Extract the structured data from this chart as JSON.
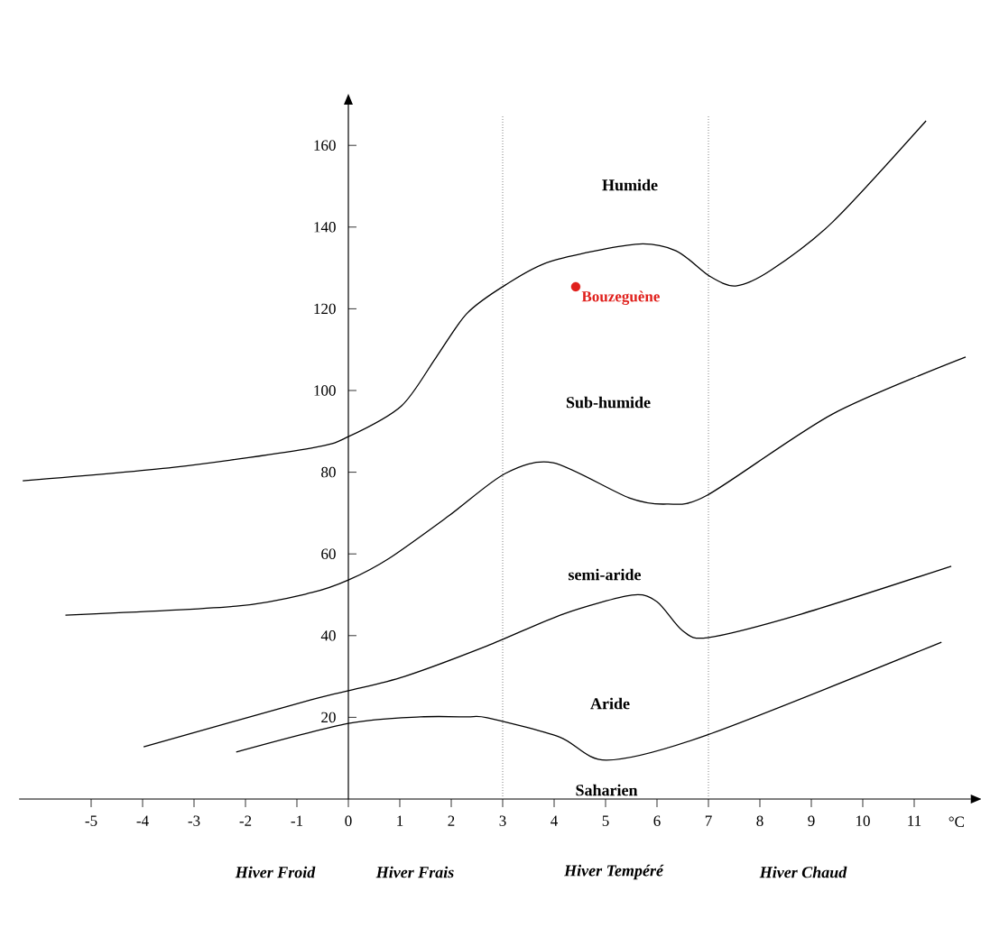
{
  "chart_data": {
    "type": "line",
    "xlabel": "°C",
    "xlim": [
      -6.4,
      12.1
    ],
    "ylim": [
      0,
      170
    ],
    "xticks": [
      -5,
      -4,
      -3,
      -2,
      -1,
      0,
      1,
      2,
      3,
      4,
      5,
      6,
      7,
      8,
      9,
      10,
      11
    ],
    "yticks": [
      20,
      40,
      60,
      80,
      100,
      120,
      140,
      160
    ],
    "line_style": "solid",
    "series": [
      {
        "color": "#000000",
        "x": [
          -6.33,
          -3.39,
          -0.72,
          0,
          1.03,
          1.7,
          2.3,
          3.05,
          3.93,
          5.58,
          6.37,
          7.02,
          7.53,
          8.21,
          9.42,
          11.23
        ],
        "values": [
          77.9,
          81.2,
          85.9,
          88.7,
          96.2,
          108,
          118.8,
          125.8,
          131.6,
          135.8,
          134.2,
          128,
          125.6,
          129.4,
          141.3,
          166
        ]
      },
      {
        "color": "#000000",
        "x": [
          -5.5,
          -2.18,
          -0.72,
          0,
          0.79,
          1.95,
          3.05,
          3.98,
          5.46,
          6.19,
          6.98,
          9.42,
          12.0
        ],
        "values": [
          45,
          47.2,
          50.5,
          53.6,
          58.9,
          69.3,
          79.7,
          82.3,
          73.7,
          72.2,
          74.4,
          94.3,
          108.2
        ]
      },
      {
        "color": "#000000",
        "x": [
          -3.98,
          -0.72,
          0,
          1.09,
          2.7,
          4.18,
          5.51,
          6.0,
          6.49,
          6.98,
          8.81,
          11.72
        ],
        "values": [
          12.8,
          24.3,
          26.5,
          30.0,
          37.5,
          45.3,
          49.9,
          48.3,
          41.3,
          39.5,
          45.3,
          57.0
        ]
      },
      {
        "color": "#000000",
        "x": [
          -2.18,
          0,
          1.4,
          2.3,
          2.7,
          4.1,
          5.02,
          6.98,
          11.53
        ],
        "values": [
          11.5,
          18.5,
          20.1,
          20.1,
          19.9,
          15.2,
          9.5,
          15.7,
          38.4
        ]
      },
      {
        "type": "scatter",
        "name": "Bouzeguène",
        "color": "#e0201c",
        "marker": "circle",
        "x": [
          4.42
        ],
        "values": [
          125.4
        ]
      }
    ],
    "ref_lines": [
      {
        "axis": "x",
        "value": 3,
        "color": "#808080",
        "line_style": "dotted"
      },
      {
        "axis": "x",
        "value": 7,
        "color": "#808080",
        "line_style": "dotted"
      }
    ],
    "annotations": [
      "Humide",
      "Sub-humide",
      "semi-aride",
      "Aride",
      "Saharien",
      "Hiver Froid",
      "Hiver Frais",
      "Hiver Tempéré",
      "Hiver Chaud"
    ]
  }
}
